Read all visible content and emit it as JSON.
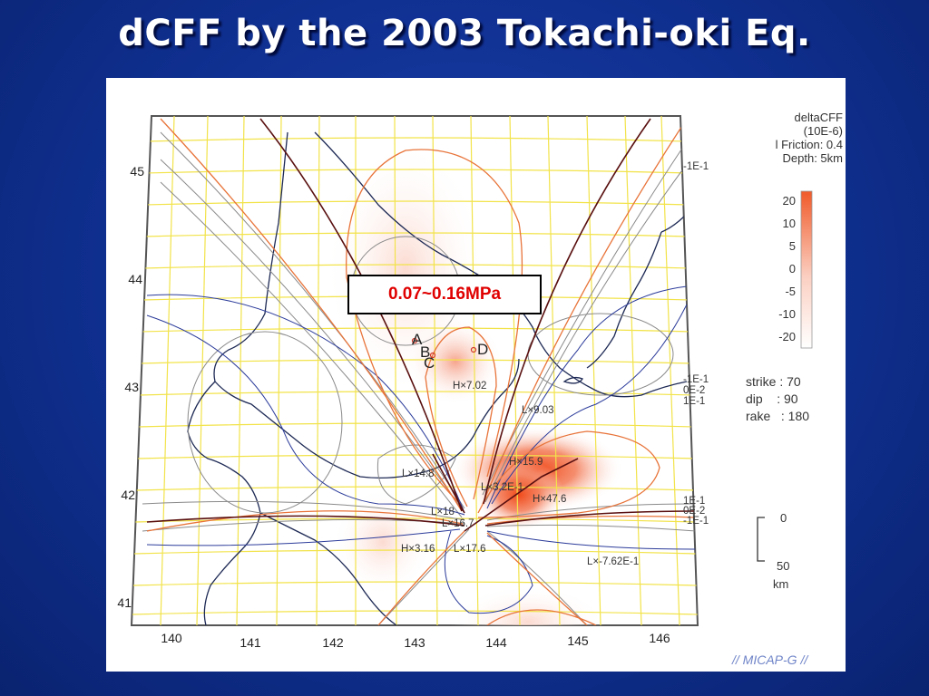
{
  "slide": {
    "title": "dCFF by the 2003 Tokachi-oki Eq."
  },
  "map": {
    "lon_ticks": [
      "140",
      "141",
      "142",
      "143",
      "144",
      "145",
      "146"
    ],
    "lat_ticks": [
      "45",
      "44",
      "43",
      "42",
      "41"
    ],
    "callout": "0.07~0.16MPa",
    "site_labels": [
      "A",
      "B",
      "C",
      "D"
    ],
    "contour_labels": {
      "h_702": "H×7.02",
      "l_903": "L×9.03",
      "h_159": "H×15.9",
      "l_148": "L×14.8",
      "l_32e": "L×3.2E-1",
      "h_476": "H×47.6",
      "l_18": "L×18",
      "l_167": "L×16.7",
      "h_316": "H×3.16",
      "l_176": "L×17.6",
      "l_762": "L×-7.62E-1",
      "e_top": "-1E-1",
      "e_mid_a": "-1E-1",
      "e_mid_b": "0E-2",
      "e_mid_c": "1E-1",
      "e_low_a": "1E-1",
      "e_low_b": "0E-2",
      "e_low_c": "-1E-1"
    }
  },
  "legend": {
    "title_lines": [
      "deltaCFF",
      "(10E-6)",
      "l Friction: 0.4",
      "Depth: 5km"
    ],
    "scale_values": [
      "20",
      "10",
      "5",
      "0",
      "-5",
      "-10",
      "-20"
    ],
    "colors": {
      "high": "#f05a2a",
      "low": "#ffffff"
    }
  },
  "params": {
    "strike": "strike : 70",
    "dip": "dip    : 90",
    "rake": "rake   : 180"
  },
  "scalebar": {
    "top": "0",
    "bottom": "50",
    "unit": "km"
  },
  "credit": "// MICAP-G //"
}
